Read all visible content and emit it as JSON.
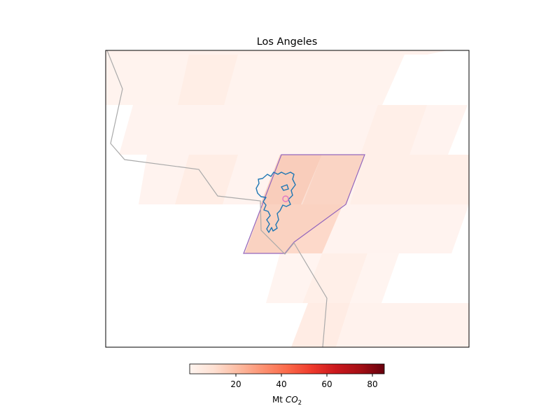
{
  "title": "Los Angeles",
  "colorbar": {
    "colormap": "Reds",
    "range": [
      0,
      85
    ],
    "ticks": [
      "20",
      "40",
      "60",
      "80"
    ],
    "label_prefix": "Mt ",
    "label_var": "CO",
    "label_sub": "2"
  },
  "colors": {
    "city_outline": "#1f77b4",
    "region_outline": "#9467bd",
    "region_fill": "#f4c8b8",
    "border_lines": "#aaaaaa",
    "marker": "#e377c2"
  },
  "map_layers": {
    "emission_tiles": "light red swaths (low values, ~0-15 Mt CO2)",
    "city_boundary": "blue outline",
    "analysis_region": "purple polygon",
    "administrative_borders": "gray lines",
    "city_center_marker": "magenta circle"
  }
}
